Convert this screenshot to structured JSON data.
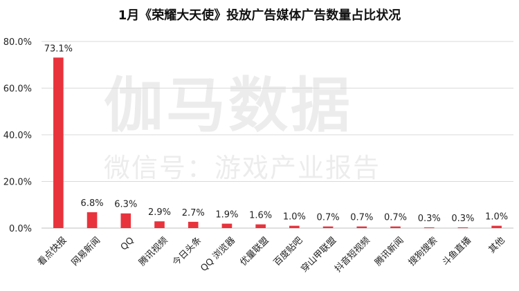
{
  "chart_data": {
    "type": "bar",
    "title": "1月《荣耀大天使》投放广告媒体广告数量占比状况",
    "categories": [
      "看点快报",
      "网易新闻",
      "QQ",
      "腾讯视频",
      "今日头条",
      "QQ 浏览器",
      "优量联盟",
      "百度贴吧",
      "穿山甲联盟",
      "抖音短视频",
      "腾讯新闻",
      "搜狗搜索",
      "斗鱼直播",
      "其他"
    ],
    "values": [
      73.1,
      6.8,
      6.3,
      2.9,
      2.7,
      1.9,
      1.6,
      1.0,
      0.7,
      0.7,
      0.7,
      0.3,
      0.3,
      1.0
    ],
    "value_labels": [
      "73.1%",
      "6.8%",
      "6.3%",
      "2.9%",
      "2.7%",
      "1.9%",
      "1.6%",
      "1.0%",
      "0.7%",
      "0.7%",
      "0.7%",
      "0.3%",
      "0.3%",
      "1.0%"
    ],
    "yticks": [
      "0.0%",
      "20.0%",
      "40.0%",
      "60.0%",
      "80.0%"
    ],
    "ytick_values": [
      0,
      20,
      40,
      60,
      80
    ],
    "ylim": [
      0,
      80
    ],
    "grid": true,
    "bar_color": "#e8333c"
  },
  "watermark": {
    "main": "伽马数据",
    "sub": "微信号：游戏产业报告"
  }
}
